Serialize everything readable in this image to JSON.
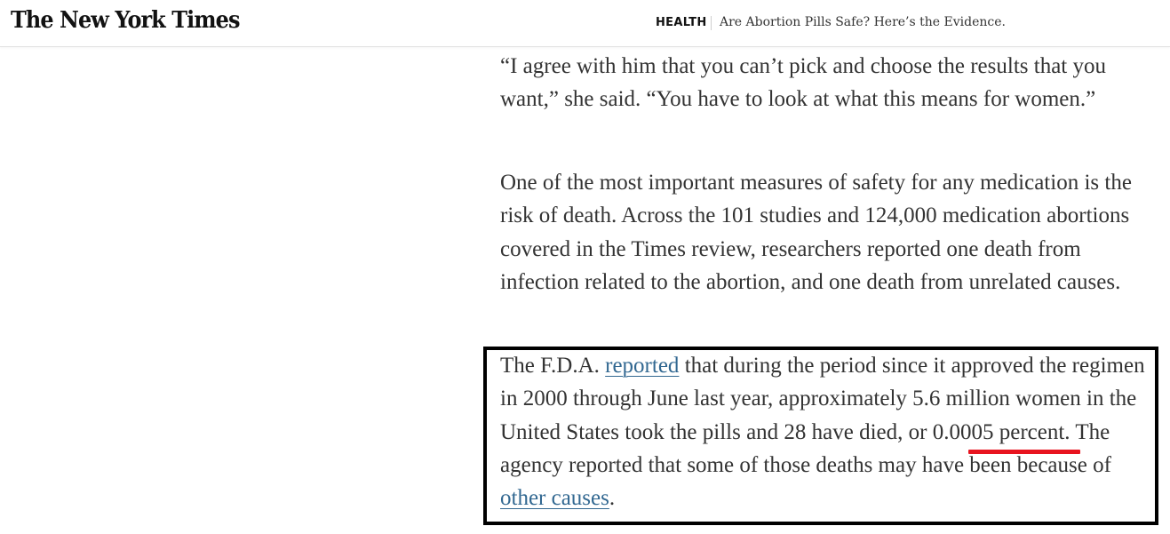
{
  "header": {
    "logo": "The New York Times",
    "section": "HEALTH",
    "headline": "Are Abortion Pills Safe? Here’s the Evidence."
  },
  "article": {
    "p1": "“I agree with him that you can’t pick and choose the results that you want,” she said. “You have to look at what this means for women.”",
    "p2": "One of the most important measures of safety for any medication is the risk of death. Across the 101 studies and 124,000 medication abortions covered in the Times review, researchers reported one death from infection related to the abortion, and one death from unrelated causes.",
    "p3": {
      "t1": "The F.D.A. ",
      "link1": "reported",
      "t2": " that during the period since it approved the regimen in 2000 through June last year, approximately 5.6 million women in the United States took the pills and 28 have died, or 0.0005 percent. The agency reported that some of those deaths may have been because of ",
      "link2": "other causes",
      "t3": "."
    }
  },
  "annotations": {
    "box_color": "#000000",
    "underline_color": "#e8141f"
  },
  "colors": {
    "link": "#326891",
    "text": "#333333"
  }
}
